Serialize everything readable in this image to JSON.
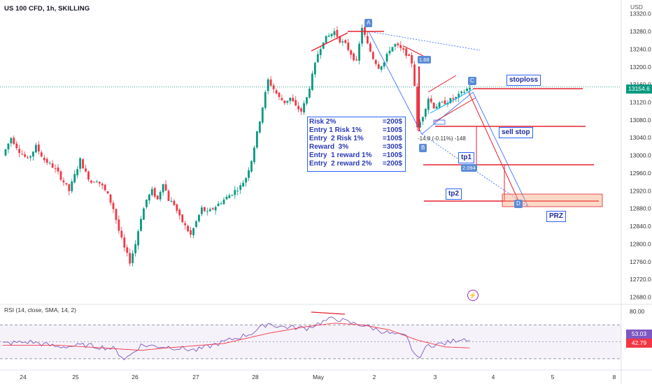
{
  "header": {
    "symbol": "US 100 CFD, 1h, SKILLING",
    "currency": "USD"
  },
  "price_tags": {
    "last": "13154.6",
    "rsi": "53.03",
    "rsi_ma": "42.79"
  },
  "rsi_title": "RSI (14, close, SMA, 14, 2)",
  "info_box": {
    "rows": [
      {
        "label": "Risk 2%",
        "value": "=200$"
      },
      {
        "label": "Entry 1 Risk 1%",
        "value": "=100$"
      },
      {
        "label": "Entry  2 Risk 1%",
        "value": "=100$"
      },
      {
        "label": "Reward  3%",
        "value": "=300$"
      },
      {
        "label": "Entry  1 reward 1%",
        "value": "=100$"
      },
      {
        "label": "Entry  2 reward 2%",
        "value": "=200$"
      }
    ]
  },
  "labels": {
    "stoploss": "stoploss",
    "sell_stop": "sell stop",
    "tp1": "tp1",
    "tp2": "tp2",
    "prz": "PRZ"
  },
  "points": {
    "a": "A",
    "b": "B",
    "c": "C",
    "d": "D"
  },
  "flags": {
    "near_a": "1.68",
    "near_tp1": "2.094"
  },
  "measure_text": "-14.8 (-0.11%) -148",
  "bolt_icon": "⚡",
  "colors": {
    "up": "#089981",
    "down": "#f23645",
    "rsi": "#7e57c2",
    "rsi_ma": "#f23645",
    "pattern": "#2962ff",
    "level": "#e5202e"
  },
  "chart_data": {
    "type": "candlestick",
    "price_axis": {
      "ticks": [
        "13320.0",
        "13280.0",
        "13240.0",
        "13200.0",
        "13160.0",
        "13120.0",
        "13080.0",
        "13040.0",
        "13000.0",
        "12960.0",
        "12920.0",
        "12880.0",
        "12840.0",
        "12800.0",
        "12760.0",
        "12720.0",
        "12680.0"
      ],
      "ylim": [
        12665,
        13340
      ]
    },
    "rsi_axis": {
      "ticks": [
        "80.00"
      ]
    },
    "x_ticks": [
      "24",
      "25",
      "26",
      "27",
      "28",
      "May",
      "2",
      "3",
      "4",
      "5",
      "8"
    ],
    "close_path": [
      [
        0,
        13000
      ],
      [
        3,
        13040
      ],
      [
        6,
        13010
      ],
      [
        9,
        12990
      ],
      [
        12,
        13020
      ],
      [
        15,
        12990
      ],
      [
        18,
        12975
      ],
      [
        20,
        12960
      ],
      [
        22,
        12940
      ],
      [
        24,
        12920
      ],
      [
        26,
        12955
      ],
      [
        28,
        12990
      ],
      [
        30,
        12960
      ],
      [
        32,
        12940
      ],
      [
        34,
        12945
      ],
      [
        36,
        12930
      ],
      [
        38,
        12910
      ],
      [
        40,
        12880
      ],
      [
        42,
        12830
      ],
      [
        44,
        12790
      ],
      [
        46,
        12760
      ],
      [
        48,
        12800
      ],
      [
        50,
        12860
      ],
      [
        52,
        12900
      ],
      [
        54,
        12920
      ],
      [
        56,
        12900
      ],
      [
        58,
        12940
      ],
      [
        60,
        12900
      ],
      [
        62,
        12890
      ],
      [
        64,
        12860
      ],
      [
        66,
        12840
      ],
      [
        68,
        12820
      ],
      [
        70,
        12850
      ],
      [
        72,
        12880
      ],
      [
        74,
        12870
      ],
      [
        76,
        12880
      ],
      [
        78,
        12890
      ],
      [
        80,
        12900
      ],
      [
        82,
        12910
      ],
      [
        84,
        12920
      ],
      [
        86,
        12930
      ],
      [
        88,
        12950
      ],
      [
        90,
        12990
      ],
      [
        92,
        13050
      ],
      [
        94,
        13110
      ],
      [
        96,
        13170
      ],
      [
        98,
        13150
      ],
      [
        100,
        13130
      ],
      [
        102,
        13120
      ],
      [
        104,
        13130
      ],
      [
        106,
        13110
      ],
      [
        108,
        13100
      ],
      [
        110,
        13130
      ],
      [
        112,
        13180
      ],
      [
        114,
        13230
      ],
      [
        116,
        13260
      ],
      [
        118,
        13270
      ],
      [
        120,
        13280
      ],
      [
        122,
        13260
      ],
      [
        124,
        13250
      ],
      [
        126,
        13230
      ],
      [
        128,
        13210
      ],
      [
        130,
        13290
      ],
      [
        132,
        13250
      ],
      [
        134,
        13220
      ],
      [
        136,
        13200
      ],
      [
        138,
        13210
      ],
      [
        140,
        13240
      ],
      [
        142,
        13250
      ],
      [
        144,
        13240
      ],
      [
        146,
        13230
      ],
      [
        148,
        13210
      ],
      [
        149,
        13160
      ],
      [
        150,
        13060
      ],
      [
        152,
        13090
      ],
      [
        154,
        13130
      ],
      [
        156,
        13110
      ],
      [
        158,
        13115
      ],
      [
        160,
        13120
      ],
      [
        162,
        13125
      ],
      [
        164,
        13130
      ],
      [
        166,
        13140
      ],
      [
        168,
        13150
      ],
      [
        169,
        13154.6
      ]
    ],
    "rsi_path": [
      [
        0,
        48
      ],
      [
        10,
        50
      ],
      [
        20,
        44
      ],
      [
        30,
        46
      ],
      [
        40,
        42
      ],
      [
        44,
        30
      ],
      [
        46,
        34
      ],
      [
        50,
        46
      ],
      [
        60,
        44
      ],
      [
        70,
        40
      ],
      [
        80,
        50
      ],
      [
        90,
        60
      ],
      [
        96,
        72
      ],
      [
        100,
        68
      ],
      [
        110,
        66
      ],
      [
        116,
        74
      ],
      [
        120,
        78
      ],
      [
        126,
        72
      ],
      [
        130,
        70
      ],
      [
        136,
        64
      ],
      [
        140,
        60
      ],
      [
        146,
        56
      ],
      [
        148,
        42
      ],
      [
        150,
        30
      ],
      [
        154,
        46
      ],
      [
        160,
        48
      ],
      [
        166,
        54
      ],
      [
        169,
        53.03
      ]
    ],
    "rsi_ma_path": [
      [
        0,
        46
      ],
      [
        20,
        46
      ],
      [
        40,
        42
      ],
      [
        50,
        40
      ],
      [
        60,
        43
      ],
      [
        80,
        48
      ],
      [
        96,
        60
      ],
      [
        110,
        68
      ],
      [
        120,
        72
      ],
      [
        130,
        70
      ],
      [
        140,
        64
      ],
      [
        150,
        52
      ],
      [
        160,
        44
      ],
      [
        169,
        42.79
      ]
    ],
    "levels": {
      "stoploss": 13150,
      "sell_stop": 13070,
      "tp1": 12980,
      "tp2": 12893
    }
  }
}
